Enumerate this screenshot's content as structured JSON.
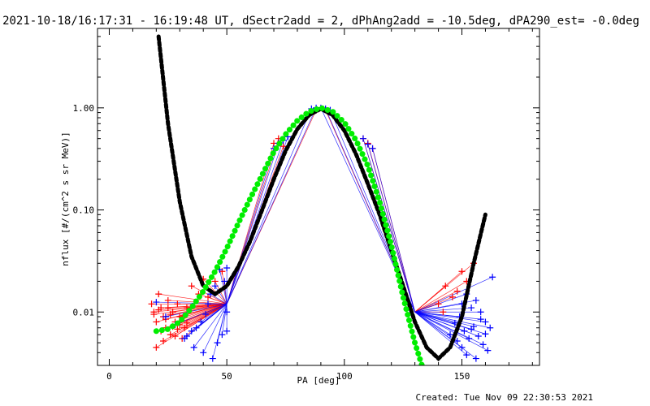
{
  "chart_data": {
    "type": "scatter",
    "title": "2021-10-18/16:17:31 - 16:19:48 UT, dSectr2add = 2, dPhAng2add = -10.5deg, dPA290_est= -0.0deg",
    "xlabel": "PA [deg]",
    "ylabel": "nflux [#/(cm^2 s sr MeV)]",
    "xlim": [
      -5,
      183
    ],
    "ylim": [
      0.003,
      6.0
    ],
    "y_scale": "log",
    "x_ticks": [
      "0",
      "50",
      "100",
      "150"
    ],
    "y_ticks": [
      "0.01",
      "0.10",
      "1.00"
    ],
    "grid": false,
    "footer": "Created: Tue Nov 09 22:30:53 2021",
    "series": [
      {
        "color": "#000000",
        "style": "thick-dashed",
        "x": [
          21,
          25,
          30,
          35,
          40,
          45,
          50,
          55,
          60,
          65,
          70,
          75,
          80,
          85,
          90,
          95,
          100,
          105,
          110,
          115,
          120,
          125,
          130,
          135,
          140,
          145,
          150,
          155,
          160
        ],
        "y": [
          5.0,
          0.7,
          0.12,
          0.035,
          0.018,
          0.015,
          0.018,
          0.028,
          0.05,
          0.1,
          0.2,
          0.38,
          0.62,
          0.85,
          0.98,
          0.85,
          0.6,
          0.35,
          0.18,
          0.09,
          0.04,
          0.018,
          0.008,
          0.0045,
          0.0035,
          0.0045,
          0.009,
          0.03,
          0.09
        ]
      },
      {
        "color": "#00ee00",
        "style": "thick-dots",
        "x": [
          20,
          25,
          30,
          35,
          40,
          45,
          50,
          55,
          60,
          65,
          70,
          75,
          80,
          85,
          90,
          95,
          100,
          105,
          110,
          115,
          120,
          125,
          130,
          133
        ],
        "y": [
          0.0065,
          0.0068,
          0.008,
          0.011,
          0.016,
          0.025,
          0.042,
          0.075,
          0.13,
          0.22,
          0.37,
          0.55,
          0.75,
          0.92,
          1.0,
          0.92,
          0.72,
          0.48,
          0.27,
          0.12,
          0.045,
          0.014,
          0.005,
          0.003
        ]
      }
    ],
    "scatter_series": [
      {
        "color": "#ff0000",
        "marker": "+",
        "x": [
          18,
          19,
          20,
          21,
          22,
          23,
          24,
          25,
          26,
          27,
          28,
          29,
          30,
          31,
          32,
          33,
          20,
          22,
          24,
          26,
          28,
          30,
          19,
          23,
          27,
          31,
          25,
          29,
          21,
          33,
          35,
          38,
          40,
          42,
          45,
          48,
          70,
          72,
          74,
          88,
          92,
          108,
          110,
          112,
          140,
          143,
          146,
          150,
          152,
          155,
          148,
          142
        ],
        "y": [
          0.012,
          0.01,
          0.008,
          0.015,
          0.011,
          0.009,
          0.007,
          0.013,
          0.006,
          0.01,
          0.008,
          0.012,
          0.009,
          0.0055,
          0.007,
          0.011,
          0.0045,
          0.0065,
          0.0085,
          0.0095,
          0.0058,
          0.0075,
          0.0095,
          0.0052,
          0.0072,
          0.0088,
          0.011,
          0.0068,
          0.0105,
          0.0078,
          0.018,
          0.015,
          0.021,
          0.014,
          0.02,
          0.025,
          0.45,
          0.5,
          0.42,
          0.95,
          0.95,
          0.5,
          0.45,
          0.4,
          0.012,
          0.018,
          0.014,
          0.025,
          0.02,
          0.03,
          0.016,
          0.01
        ]
      },
      {
        "color": "#0000ff",
        "marker": "+",
        "x": [
          20,
          24,
          28,
          32,
          36,
          40,
          44,
          46,
          48,
          50,
          50,
          50,
          47,
          49,
          45,
          43,
          42,
          41,
          39,
          37,
          35,
          33,
          70,
          72,
          74,
          76,
          86,
          88,
          90,
          92,
          94,
          108,
          110,
          112,
          150,
          152,
          154,
          156,
          158,
          160,
          162,
          149,
          151,
          153,
          155,
          157,
          159,
          161,
          148,
          150,
          152,
          154,
          156,
          158,
          160,
          145,
          147,
          163
        ],
        "y": [
          0.0125,
          0.009,
          0.0075,
          0.0055,
          0.0045,
          0.004,
          0.0035,
          0.005,
          0.006,
          0.0065,
          0.01,
          0.027,
          0.026,
          0.02,
          0.018,
          0.015,
          0.012,
          0.0095,
          0.008,
          0.007,
          0.0065,
          0.0058,
          0.4,
          0.45,
          0.48,
          0.52,
          0.98,
          1.0,
          1.0,
          0.98,
          0.95,
          0.5,
          0.44,
          0.4,
          0.012,
          0.015,
          0.011,
          0.013,
          0.01,
          0.008,
          0.007,
          0.009,
          0.0065,
          0.0055,
          0.0072,
          0.0058,
          0.0048,
          0.0042,
          0.0052,
          0.0045,
          0.0038,
          0.0068,
          0.0035,
          0.0085,
          0.0061,
          0.006,
          0.0078,
          0.022
        ]
      }
    ]
  }
}
